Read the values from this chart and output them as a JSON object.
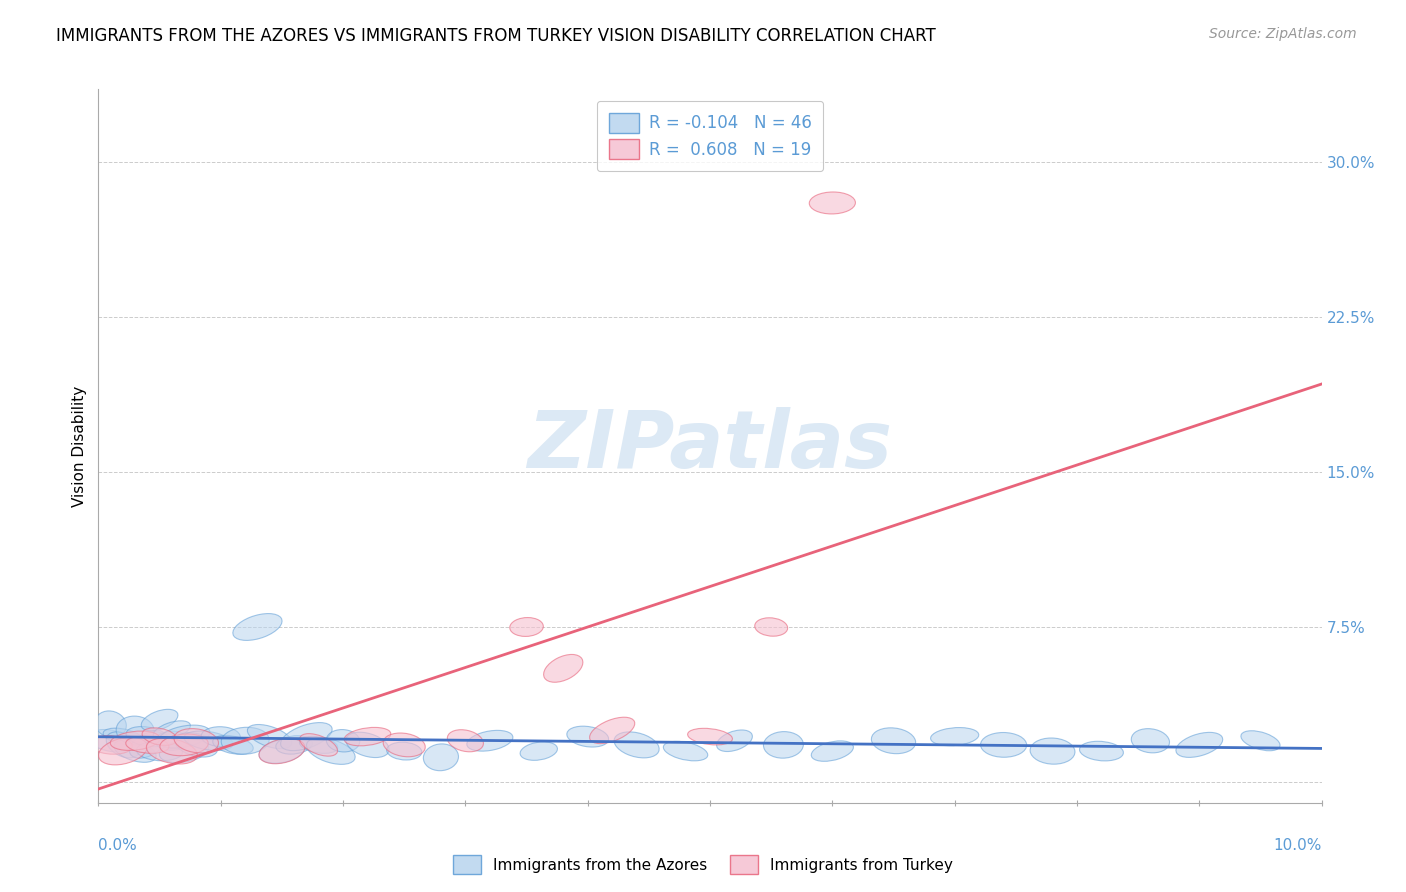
{
  "title": "IMMIGRANTS FROM THE AZORES VS IMMIGRANTS FROM TURKEY VISION DISABILITY CORRELATION CHART",
  "source": "Source: ZipAtlas.com",
  "ylabel": "Vision Disability",
  "xlim": [
    0.0,
    0.1
  ],
  "ylim": [
    -0.01,
    0.335
  ],
  "ytick_vals": [
    0.0,
    0.075,
    0.15,
    0.225,
    0.3
  ],
  "ytick_labels": [
    "",
    "7.5%",
    "15.0%",
    "22.5%",
    "30.0%"
  ],
  "xtick_left_label": "0.0%",
  "xtick_right_label": "10.0%",
  "color_azores_fill": "#B8D4EE",
  "color_azores_edge": "#5B9BD5",
  "color_turkey_fill": "#F5C0D0",
  "color_turkey_edge": "#E8637A",
  "line_color_azores": "#4472C4",
  "line_color_turkey": "#E8637A",
  "tick_color": "#5B9BD5",
  "title_fontsize": 12,
  "source_fontsize": 10,
  "legend_text_color": "#5B9BD5",
  "legend_label1": "R = -0.104   N = 46",
  "legend_label2": "R =  0.608   N = 19",
  "bottom_legend": [
    "Immigrants from the Azores",
    "Immigrants from Turkey"
  ],
  "azores_x": [
    0.001,
    0.001,
    0.002,
    0.002,
    0.003,
    0.003,
    0.004,
    0.004,
    0.005,
    0.005,
    0.006,
    0.006,
    0.007,
    0.007,
    0.008,
    0.009,
    0.01,
    0.011,
    0.012,
    0.013,
    0.014,
    0.015,
    0.016,
    0.017,
    0.018,
    0.019,
    0.02,
    0.022,
    0.025,
    0.028,
    0.032,
    0.036,
    0.04,
    0.044,
    0.048,
    0.052,
    0.056,
    0.06,
    0.065,
    0.07,
    0.074,
    0.078,
    0.082,
    0.086,
    0.09,
    0.095
  ],
  "azores_y": [
    0.02,
    0.028,
    0.022,
    0.018,
    0.015,
    0.025,
    0.018,
    0.022,
    0.015,
    0.03,
    0.02,
    0.025,
    0.015,
    0.022,
    0.018,
    0.02,
    0.022,
    0.018,
    0.02,
    0.075,
    0.022,
    0.015,
    0.018,
    0.022,
    0.018,
    0.015,
    0.02,
    0.018,
    0.015,
    0.012,
    0.02,
    0.015,
    0.022,
    0.018,
    0.015,
    0.02,
    0.018,
    0.015,
    0.02,
    0.022,
    0.018,
    0.015,
    0.015,
    0.02,
    0.018,
    0.02
  ],
  "turkey_x": [
    0.001,
    0.002,
    0.003,
    0.004,
    0.005,
    0.006,
    0.007,
    0.008,
    0.015,
    0.018,
    0.022,
    0.025,
    0.03,
    0.035,
    0.038,
    0.042,
    0.05,
    0.055,
    0.06
  ],
  "turkey_y": [
    0.018,
    0.015,
    0.02,
    0.018,
    0.022,
    0.015,
    0.018,
    0.02,
    0.015,
    0.018,
    0.022,
    0.018,
    0.02,
    0.075,
    0.055,
    0.025,
    0.022,
    0.075,
    0.28
  ]
}
